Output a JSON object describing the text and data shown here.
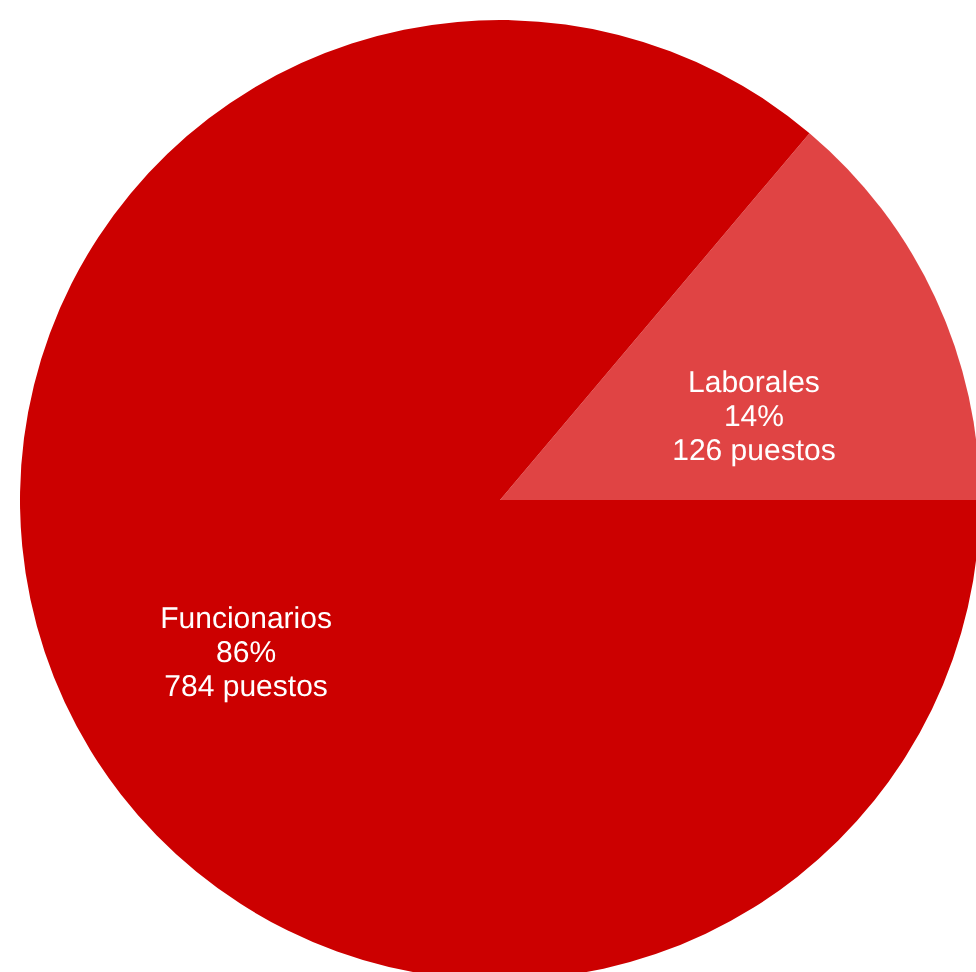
{
  "chart_data": {
    "type": "pie",
    "categories": [
      "Laborales",
      "Funcionarios"
    ],
    "values": [
      126,
      784
    ],
    "value_labels": [
      "14%\n126 puestos",
      "86%\n784 puestos"
    ],
    "colors": [
      "#e04444",
      "#cc0000"
    ]
  }
}
